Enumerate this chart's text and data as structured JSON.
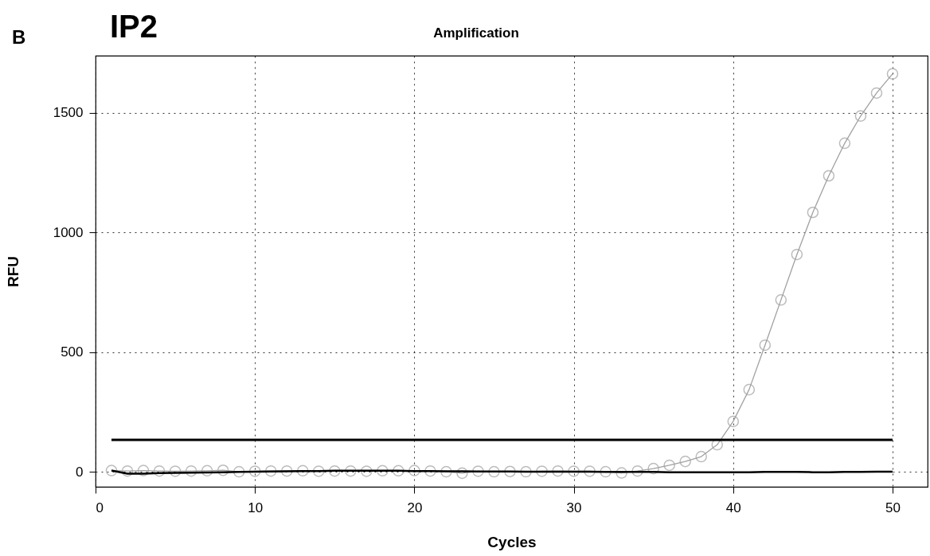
{
  "chart_data": {
    "type": "line",
    "title": "Amplification",
    "xlabel": "Cycles",
    "ylabel": "RFU",
    "annotations": [
      "B",
      "IP2"
    ],
    "x": [
      1,
      2,
      3,
      4,
      5,
      6,
      7,
      8,
      9,
      10,
      11,
      12,
      13,
      14,
      15,
      16,
      17,
      18,
      19,
      20,
      21,
      22,
      23,
      24,
      25,
      26,
      27,
      28,
      29,
      30,
      31,
      32,
      33,
      34,
      35,
      36,
      37,
      38,
      39,
      40,
      41,
      42,
      43,
      44,
      45,
      46,
      47,
      48,
      49,
      50
    ],
    "xlim": [
      0,
      52.2
    ],
    "xticks": [
      0,
      10,
      20,
      30,
      40,
      50
    ],
    "ylim": [
      -63,
      1739
    ],
    "yticks": [
      0,
      500,
      1000,
      1500
    ],
    "grid": true,
    "line_style": "solid",
    "series": [
      {
        "color": "#a0a0a0",
        "marker": "circle",
        "values": [
          5,
          3,
          5,
          3,
          2,
          3,
          4,
          6,
          0,
          2,
          3,
          3,
          4,
          2,
          3,
          3,
          2,
          4,
          4,
          5,
          3,
          0,
          -6,
          2,
          0,
          1,
          0,
          2,
          3,
          2,
          2,
          0,
          -5,
          3,
          13,
          27,
          43,
          63,
          113,
          210,
          343,
          529,
          718,
          908,
          1084,
          1237,
          1373,
          1487,
          1583,
          1663
        ]
      },
      {
        "color": "#000000",
        "marker": "none",
        "values": [
          5,
          -8,
          -8,
          -6,
          -5,
          -4,
          -3,
          -2,
          -1,
          0,
          1,
          2,
          3,
          3,
          4,
          4,
          4,
          4,
          4,
          3,
          3,
          2,
          2,
          1,
          1,
          1,
          0,
          0,
          0,
          0,
          0,
          -1,
          -1,
          -1,
          -1,
          -2,
          -2,
          -2,
          -2,
          -2,
          -2,
          -1,
          -1,
          -1,
          -2,
          -2,
          -1,
          -1,
          0,
          0
        ]
      }
    ],
    "ref_lines": [
      {
        "axis": "y",
        "value": 133,
        "color": "#000000"
      }
    ]
  }
}
